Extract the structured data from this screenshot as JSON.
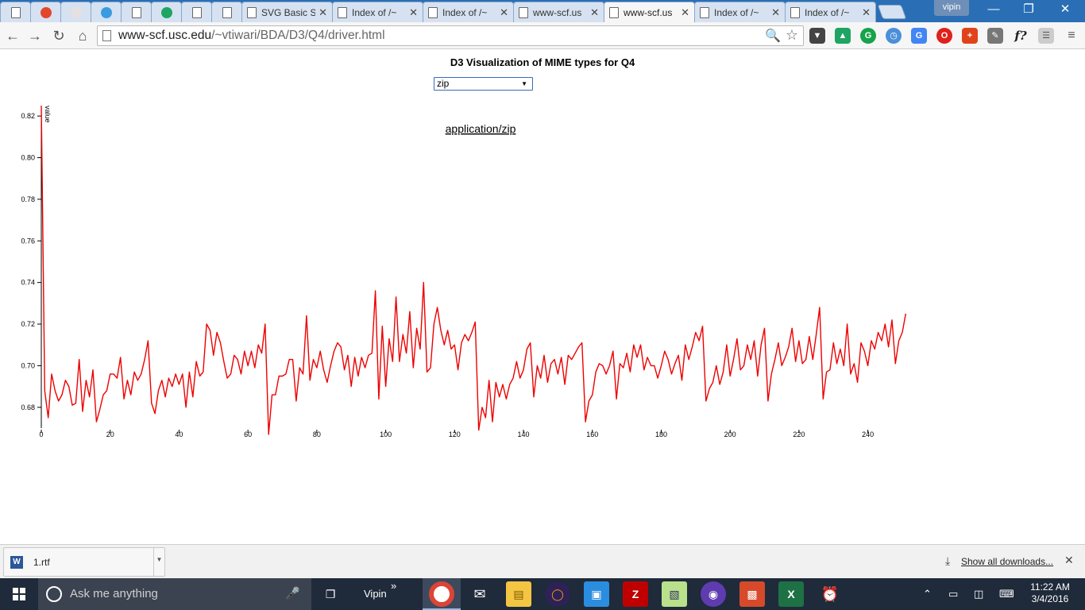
{
  "browser": {
    "tabs": [
      {
        "title": "",
        "icon": "page-icon"
      },
      {
        "title": "",
        "icon": "swirl-icon",
        "color": "#e2472b"
      },
      {
        "title": "",
        "icon": "bear-icon",
        "color": "#e6e0e0"
      },
      {
        "title": "",
        "icon": "ib-icon",
        "color": "#3b9be0"
      },
      {
        "title": "",
        "icon": "page-icon"
      },
      {
        "title": "",
        "icon": "google-drive-icon",
        "color": "#1fa463"
      },
      {
        "title": "",
        "icon": "page-icon"
      },
      {
        "title": "",
        "icon": "page-icon"
      },
      {
        "title": "SVG Basic S",
        "icon": "page-icon"
      },
      {
        "title": "Index of /~",
        "icon": "page-icon"
      },
      {
        "title": "Index of /~",
        "icon": "page-icon"
      },
      {
        "title": "www-scf.us",
        "icon": "page-icon"
      },
      {
        "title": "www-scf.us",
        "icon": "page-icon",
        "active": true
      },
      {
        "title": "Index of /~",
        "icon": "page-icon"
      },
      {
        "title": "Index of /~",
        "icon": "page-icon"
      }
    ],
    "profile_name": "vipin",
    "url_host": "www-scf.usc.edu",
    "url_path": "/~vtiwari/BDA/D3/Q4/driver.html"
  },
  "page": {
    "title": "D3 Visualization of MIME types for Q4",
    "select_value": "zip",
    "chart_label": "application/zip"
  },
  "chart_data": {
    "type": "line",
    "title": "application/zip",
    "ylabel": "value",
    "xlim": [
      0,
      256
    ],
    "ylim": [
      0.67,
      0.825
    ],
    "x_ticks": [
      0,
      20,
      40,
      60,
      80,
      100,
      120,
      140,
      160,
      180,
      200,
      220,
      240
    ],
    "y_ticks": [
      0.68,
      0.7,
      0.72,
      0.74,
      0.76,
      0.78,
      0.8,
      0.82
    ],
    "color": "#ee0000",
    "values": [
      0.825,
      0.688,
      0.675,
      0.696,
      0.688,
      0.683,
      0.686,
      0.693,
      0.69,
      0.681,
      0.682,
      0.703,
      0.678,
      0.693,
      0.685,
      0.698,
      0.673,
      0.679,
      0.686,
      0.688,
      0.696,
      0.696,
      0.694,
      0.704,
      0.684,
      0.693,
      0.686,
      0.697,
      0.693,
      0.696,
      0.703,
      0.712,
      0.682,
      0.677,
      0.688,
      0.693,
      0.685,
      0.694,
      0.69,
      0.696,
      0.691,
      0.696,
      0.68,
      0.697,
      0.685,
      0.702,
      0.695,
      0.697,
      0.72,
      0.717,
      0.705,
      0.716,
      0.711,
      0.702,
      0.694,
      0.696,
      0.705,
      0.703,
      0.696,
      0.707,
      0.7,
      0.707,
      0.699,
      0.71,
      0.706,
      0.72,
      0.667,
      0.686,
      0.686,
      0.695,
      0.695,
      0.696,
      0.703,
      0.703,
      0.683,
      0.699,
      0.696,
      0.724,
      0.693,
      0.703,
      0.699,
      0.707,
      0.698,
      0.692,
      0.7,
      0.707,
      0.711,
      0.709,
      0.698,
      0.705,
      0.69,
      0.704,
      0.695,
      0.704,
      0.699,
      0.705,
      0.706,
      0.736,
      0.684,
      0.719,
      0.69,
      0.713,
      0.702,
      0.733,
      0.702,
      0.715,
      0.706,
      0.726,
      0.699,
      0.718,
      0.708,
      0.74,
      0.697,
      0.699,
      0.72,
      0.728,
      0.717,
      0.71,
      0.717,
      0.708,
      0.71,
      0.698,
      0.711,
      0.715,
      0.712,
      0.716,
      0.721,
      0.669,
      0.68,
      0.675,
      0.693,
      0.673,
      0.692,
      0.685,
      0.691,
      0.684,
      0.691,
      0.694,
      0.702,
      0.694,
      0.698,
      0.708,
      0.711,
      0.685,
      0.7,
      0.694,
      0.705,
      0.692,
      0.701,
      0.703,
      0.696,
      0.704,
      0.691,
      0.705,
      0.703,
      0.706,
      0.709,
      0.711,
      0.673,
      0.683,
      0.686,
      0.697,
      0.701,
      0.7,
      0.696,
      0.7,
      0.707,
      0.684,
      0.701,
      0.699,
      0.706,
      0.697,
      0.71,
      0.704,
      0.71,
      0.698,
      0.704,
      0.7,
      0.7,
      0.694,
      0.7,
      0.707,
      0.703,
      0.696,
      0.701,
      0.705,
      0.693,
      0.71,
      0.703,
      0.709,
      0.716,
      0.712,
      0.719,
      0.683,
      0.689,
      0.692,
      0.7,
      0.691,
      0.697,
      0.71,
      0.695,
      0.703,
      0.713,
      0.698,
      0.7,
      0.71,
      0.703,
      0.712,
      0.695,
      0.71,
      0.718,
      0.683,
      0.696,
      0.703,
      0.711,
      0.7,
      0.704,
      0.709,
      0.718,
      0.702,
      0.712,
      0.701,
      0.703,
      0.714,
      0.703,
      0.715,
      0.728,
      0.684,
      0.697,
      0.698,
      0.711,
      0.701,
      0.708,
      0.7,
      0.72,
      0.696,
      0.701,
      0.692,
      0.711,
      0.707,
      0.7,
      0.712,
      0.708,
      0.716,
      0.712,
      0.72,
      0.709,
      0.722,
      0.701,
      0.712,
      0.716,
      0.725
    ]
  },
  "downloads": {
    "file_name": "1.rtf",
    "show_all": "Show all downloads..."
  },
  "taskbar": {
    "search_placeholder": "Ask me anything",
    "user_label": "Vipin",
    "time": "11:22 AM",
    "date": "3/4/2016"
  }
}
